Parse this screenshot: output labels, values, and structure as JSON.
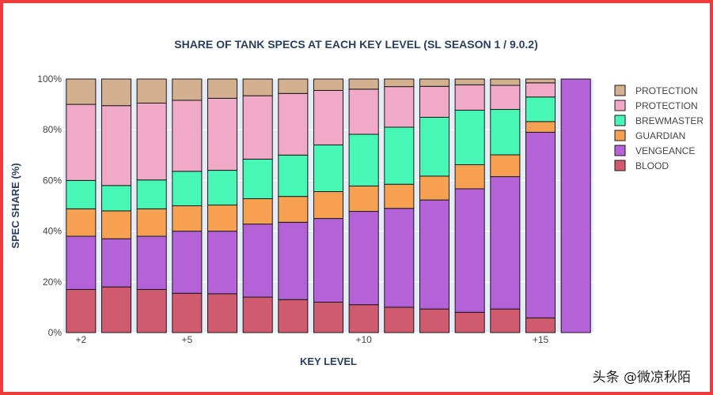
{
  "chart_data": {
    "type": "bar",
    "stacked": true,
    "title": "SHARE OF TANK SPECS AT EACH KEY LEVEL (SL SEASON 1 / 9.0.2)",
    "xlabel": "KEY LEVEL",
    "ylabel": "SPEC SHARE (%)",
    "ylim": [
      0,
      100
    ],
    "y_ticks": [
      "0%",
      "20%",
      "40%",
      "60%",
      "80%",
      "100%"
    ],
    "categories": [
      2,
      3,
      4,
      5,
      6,
      7,
      8,
      9,
      10,
      11,
      12,
      13,
      14,
      15,
      16
    ],
    "x_tick_labels": [
      {
        "category": 2,
        "label": "+2"
      },
      {
        "category": 5,
        "label": "+5"
      },
      {
        "category": 10,
        "label": "+10"
      },
      {
        "category": 15,
        "label": "+15"
      }
    ],
    "series": [
      {
        "name": "BLOOD",
        "color": "#d05a6e",
        "values": [
          17,
          18,
          17,
          15.5,
          15.3,
          14,
          13,
          12,
          11,
          10,
          9.3,
          8,
          9.3,
          5.8,
          0
        ]
      },
      {
        "name": "VENGEANCE",
        "color": "#b462d8",
        "values": [
          21,
          19,
          21,
          24.5,
          24.7,
          28.8,
          30.5,
          33,
          36.8,
          39,
          43,
          48.7,
          52.2,
          73.2,
          100
        ]
      },
      {
        "name": "GUARDIAN",
        "color": "#f6a052",
        "values": [
          10.8,
          11,
          10.8,
          10,
          10.3,
          10,
          10.2,
          10.6,
          10,
          9.5,
          9.4,
          9.5,
          8.6,
          4.2,
          0
        ]
      },
      {
        "name": "BREWMASTER",
        "color": "#46f7b5",
        "values": [
          11.2,
          10,
          11.4,
          13.6,
          13.7,
          15.6,
          16.3,
          18.4,
          20.4,
          22.5,
          23.2,
          21.5,
          17.9,
          9.7,
          0
        ]
      },
      {
        "name": "PROTECTION",
        "color": "#f1a9c8",
        "values": [
          30,
          31.5,
          30.3,
          28,
          28.4,
          25,
          24.3,
          21.5,
          17.8,
          16,
          12.2,
          10,
          9.5,
          5.6,
          0
        ]
      },
      {
        "name": "PROTECTION",
        "color": "#d2b090",
        "values": [
          10,
          10.5,
          9.5,
          8.4,
          7.6,
          6.6,
          5.7,
          4.5,
          4,
          3,
          2.9,
          2.3,
          2.5,
          1.5,
          0
        ]
      }
    ],
    "legend": {
      "position": "right",
      "order": [
        "PROTECTION",
        "PROTECTION",
        "BREWMASTER",
        "GUARDIAN",
        "VENGEANCE",
        "BLOOD"
      ]
    }
  },
  "watermark": "头条 @微凉秋陌"
}
